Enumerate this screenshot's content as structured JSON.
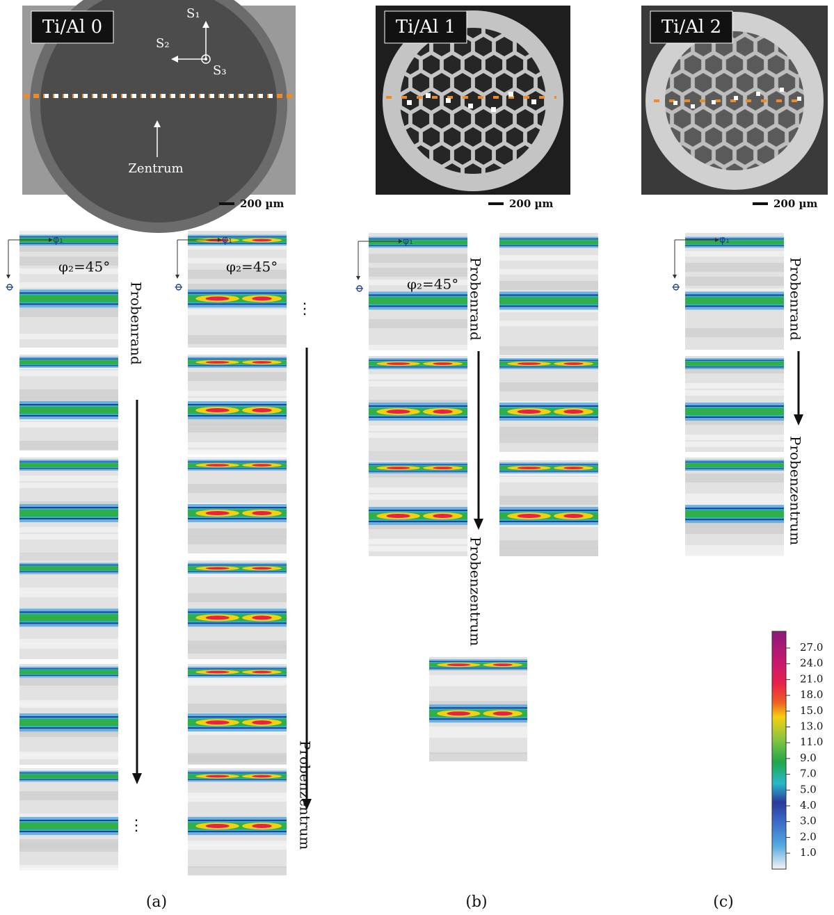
{
  "panels": [
    {
      "micrograph": {
        "title": "Ti/Al 0",
        "scale_label": "200 µm",
        "s1": "S₁",
        "s2": "S₂",
        "s3": "S₃",
        "center": "Zentrum"
      },
      "odf_columns": [
        {
          "phi1": "φ₁",
          "Phi": "Φ",
          "phi2": "φ₂=45°"
        },
        {
          "phi1": "φ₁",
          "Phi": "Φ",
          "phi2": "φ₂=45°"
        }
      ],
      "direction_from": "Probenrand",
      "direction_to": "Probenzentrum",
      "ellipses": [
        "⋮",
        "⋮"
      ],
      "caption": "(a)"
    },
    {
      "micrograph": {
        "title": "Ti/Al 1",
        "scale_label": "200 µm"
      },
      "odf_columns": [
        {
          "phi1": "φ₁",
          "Phi": "Φ",
          "phi2": "φ₂=45°"
        }
      ],
      "direction_from": "Probenrand",
      "direction_to": "Probenzentrum",
      "caption": "(b)"
    },
    {
      "micrograph": {
        "title": "Ti/Al 2",
        "scale_label": "200 µm"
      },
      "odf_columns": [
        {
          "phi1": "φ₁",
          "Phi": "Φ"
        }
      ],
      "direction_from": "Probenrand",
      "direction_to": "Probenzentrum",
      "caption": "(c)"
    }
  ],
  "colorbar": {
    "labels": [
      "27.0",
      "24.0",
      "21.0",
      "18.0",
      "15.0",
      "13.0",
      "11.0",
      "9.0",
      "7.0",
      "5.0",
      "4.0",
      "3.0",
      "2.0",
      "1.0"
    ]
  }
}
